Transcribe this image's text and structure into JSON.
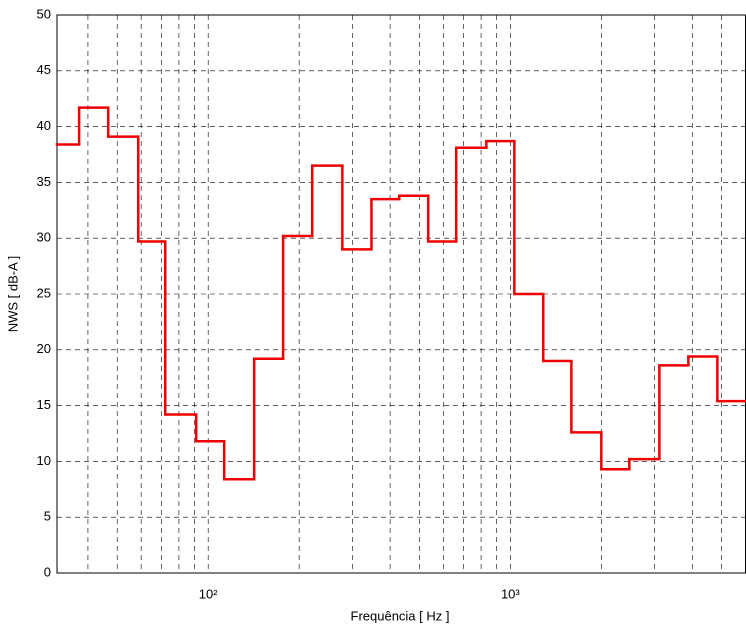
{
  "chart_data": {
    "type": "stairs",
    "xlabel": "Frequência [ Hz ]",
    "ylabel": "NWS [ dB-A ]",
    "xscale": "log",
    "grid": true,
    "color": "#ee0000",
    "xlim": [
      31.6,
      6000
    ],
    "ylim": [
      0,
      50
    ],
    "yticks": [
      0,
      5,
      10,
      15,
      20,
      25,
      30,
      35,
      40,
      45,
      50
    ],
    "xticks": [
      {
        "value": 100,
        "label": "10²"
      },
      {
        "value": 1000,
        "label": "10³"
      }
    ],
    "xminorticks": [
      40,
      50,
      60,
      70,
      80,
      90,
      200,
      300,
      400,
      500,
      600,
      700,
      800,
      900,
      2000,
      3000,
      4000,
      5000
    ],
    "x": [
      31.6,
      37.4,
      46.7,
      58.7,
      72.1,
      91.3,
      113,
      142,
      177,
      221,
      278,
      347,
      429,
      535,
      662,
      833,
      1031,
      1285,
      1592,
      2000,
      2476,
      3113,
      3882,
      4842
    ],
    "values": [
      38.4,
      41.7,
      39.1,
      29.7,
      14.2,
      11.8,
      8.4,
      19.2,
      30.2,
      36.5,
      29.0,
      33.5,
      33.8,
      29.7,
      38.1,
      38.7,
      25.0,
      19.0,
      12.6,
      9.3,
      10.2,
      18.6,
      19.4,
      15.4
    ]
  }
}
